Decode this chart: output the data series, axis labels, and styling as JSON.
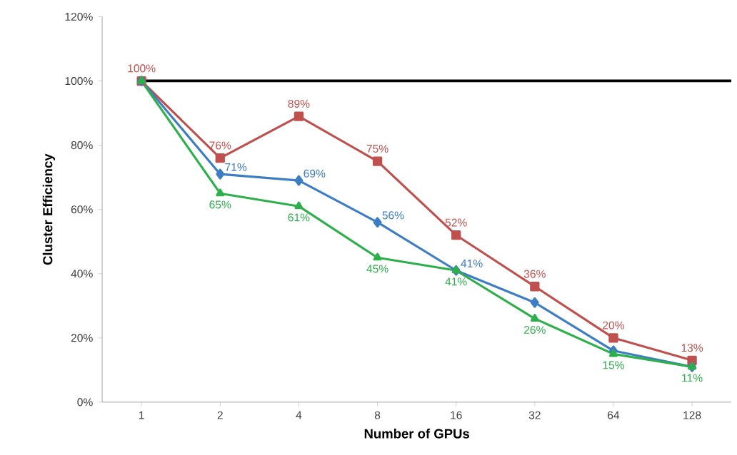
{
  "chart_data": {
    "type": "line",
    "xlabel": "Number of GPUs",
    "ylabel": "Cluster Efficiency",
    "categories": [
      "1",
      "2",
      "4",
      "8",
      "16",
      "32",
      "64",
      "128"
    ],
    "series": [
      {
        "color": "#c0504d",
        "marker": "square",
        "values": [
          100,
          76,
          89,
          75,
          52,
          36,
          20,
          13
        ],
        "value_labels": [
          "100%",
          "76%",
          "89%",
          "75%",
          "52%",
          "36%",
          "20%",
          "13%"
        ]
      },
      {
        "color": "#3c7dc4",
        "marker": "diamond",
        "values": [
          100,
          71,
          69,
          56,
          41,
          31,
          16,
          11
        ],
        "value_labels": [
          null,
          "71%",
          "69%",
          "56%",
          "41%",
          null,
          null,
          null
        ]
      },
      {
        "color": "#2db04b",
        "marker": "triangle",
        "values": [
          100,
          65,
          61,
          45,
          41,
          26,
          15,
          11
        ],
        "value_labels": [
          null,
          "65%",
          "61%",
          "45%",
          "41%",
          "26%",
          "15%",
          "11%"
        ]
      }
    ],
    "ylim": [
      0,
      120
    ],
    "yticks": [
      {
        "value": 0,
        "label": "0%"
      },
      {
        "value": 20,
        "label": "20%"
      },
      {
        "value": 40,
        "label": "40%"
      },
      {
        "value": 60,
        "label": "60%"
      },
      {
        "value": 80,
        "label": "80%"
      },
      {
        "value": 100,
        "label": "100%"
      },
      {
        "value": 120,
        "label": "120%"
      }
    ],
    "ref_lines": [
      {
        "axis": "y",
        "value": 100,
        "color": "#000000"
      }
    ],
    "grid": false,
    "line_style": "solid"
  }
}
